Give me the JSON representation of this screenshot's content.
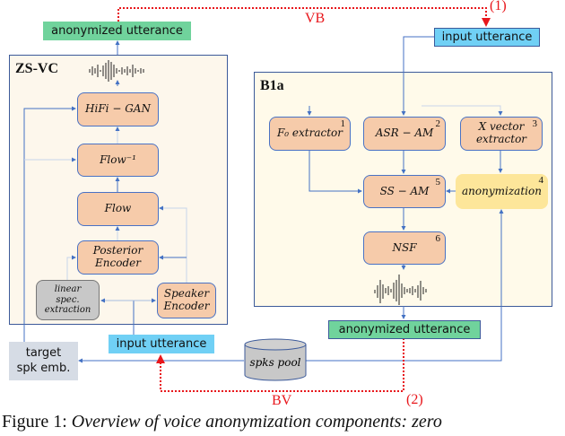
{
  "zsvc": {
    "title": "ZS-VC",
    "hifigan": "HiFi − GAN",
    "flow_inv": "Flow⁻¹",
    "flow": "Flow",
    "posterior": "Posterior Encoder",
    "linear_spec": "linear spec. extraction",
    "speaker_encoder": "Speaker Encoder"
  },
  "b1a": {
    "title": "B1a",
    "f0": "F₀ extractor",
    "f0_num": "1",
    "asr": "ASR − AM",
    "asr_num": "2",
    "xvector": "X vector extractor",
    "xvector_num": "3",
    "anonymization": "anonymization",
    "anonymization_num": "4",
    "ssam": "SS − AM",
    "ssam_num": "5",
    "nsf": "NSF",
    "nsf_num": "6"
  },
  "io": {
    "anon_top": "anonymized utterance",
    "input_top": "input utterance",
    "anon_bottom": "anonymized utterance",
    "input_bottom": "input utterance",
    "target_emb": "target spk emb.",
    "spks_pool": "spks pool"
  },
  "labels": {
    "vb": "VB",
    "vb_num": "(1)",
    "bv": "BV",
    "bv_num": "(2)"
  },
  "caption": {
    "prefix": "Figure 1: ",
    "text": "Overview of voice anonymization components: zero"
  },
  "colors": {
    "green": "#70d39c",
    "blue": "#70d0f5",
    "block": "#f6cbaa",
    "yellow": "#fde69a",
    "red": "#e8161b",
    "line": "#4472c4"
  }
}
